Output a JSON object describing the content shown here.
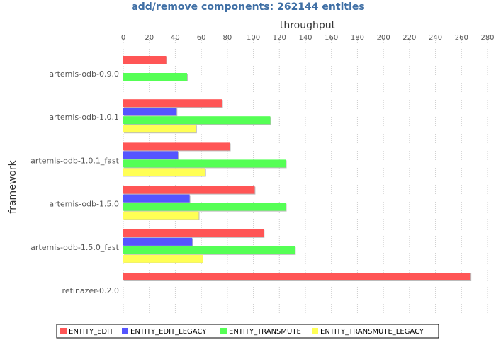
{
  "chart_data": {
    "type": "bar",
    "orientation": "horizontal",
    "title": "add/remove components: 262144 entities",
    "xlabel": "throughput",
    "ylabel": "framework",
    "xlim": [
      0,
      280
    ],
    "xticks": [
      0,
      20,
      40,
      60,
      80,
      100,
      120,
      140,
      160,
      180,
      200,
      220,
      240,
      260,
      280
    ],
    "grid": "vertical dotted",
    "legend_position": "bottom",
    "categories": [
      "artemis-odb-0.9.0",
      "artemis-odb-1.0.1",
      "artemis-odb-1.0.1_fast",
      "artemis-odb-1.5.0",
      "artemis-odb-1.5.0_fast",
      "retinazer-0.2.0"
    ],
    "series": [
      {
        "name": "ENTITY_EDIT",
        "color": "#ff5555",
        "values": [
          33,
          76,
          82,
          101,
          108,
          267
        ]
      },
      {
        "name": "ENTITY_EDIT_LEGACY",
        "color": "#5555ff",
        "values": [
          null,
          41,
          42,
          51,
          53,
          null
        ]
      },
      {
        "name": "ENTITY_TRANSMUTE",
        "color": "#55ff55",
        "values": [
          49,
          113,
          125,
          125,
          132,
          null
        ]
      },
      {
        "name": "ENTITY_TRANSMUTE_LEGACY",
        "color": "#ffff55",
        "values": [
          null,
          56,
          63,
          58,
          61,
          null
        ]
      }
    ],
    "title_color": "#3f6fa5"
  }
}
